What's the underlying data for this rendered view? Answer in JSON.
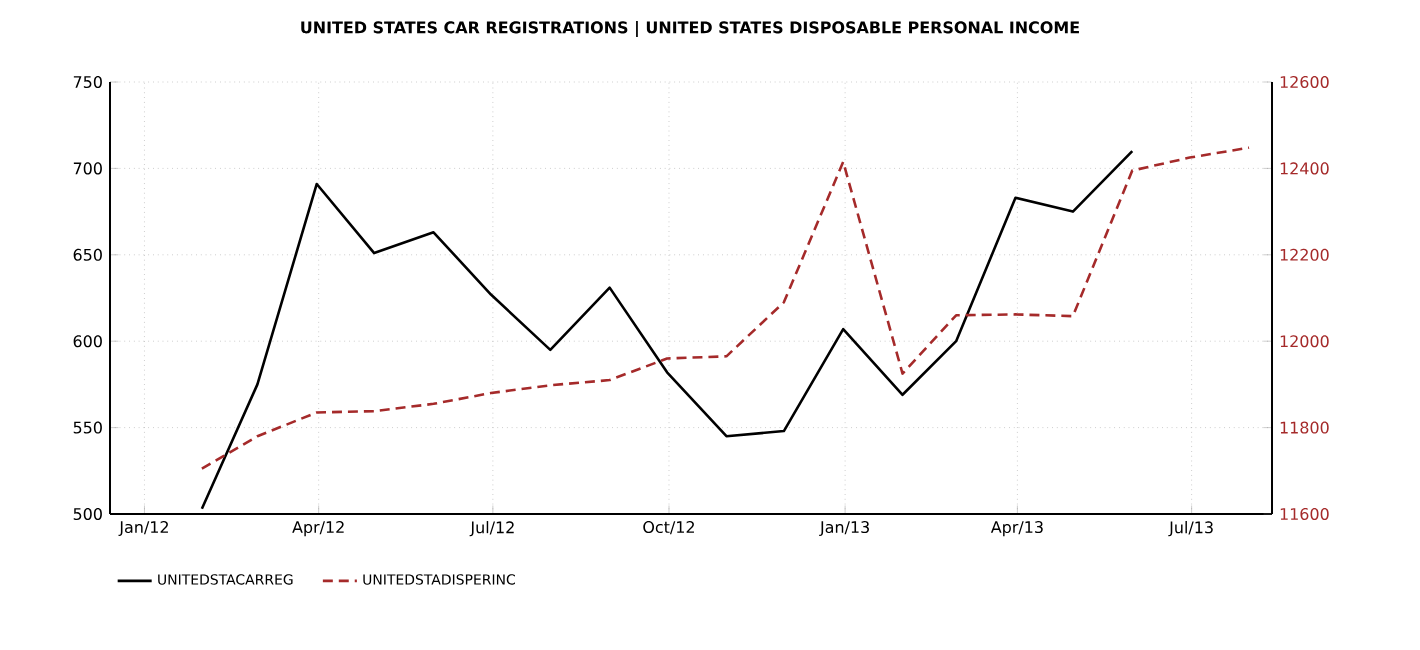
{
  "chart_data": {
    "type": "line",
    "title": "UNITED STATES CAR REGISTRATIONS |  UNITED STATES DISPOSABLE PERSONAL INCOME",
    "x": [
      "2012-01-31",
      "2012-02-29",
      "2012-03-31",
      "2012-04-30",
      "2012-05-31",
      "2012-06-30",
      "2012-07-31",
      "2012-08-31",
      "2012-09-30",
      "2012-10-31",
      "2012-11-30",
      "2012-12-31",
      "2013-01-31",
      "2013-02-28",
      "2013-03-31",
      "2013-04-30",
      "2013-05-31",
      "2013-06-30",
      "2013-07-31"
    ],
    "series": [
      {
        "name": "UNITEDSTACARREG",
        "color": "#000000",
        "line_style": "solid",
        "values": [
          503,
          575,
          691,
          651,
          663,
          627,
          595,
          631,
          582,
          545,
          548,
          607,
          569,
          600,
          683,
          675,
          710,
          null,
          null
        ]
      },
      {
        "name": "UNITEDSTADISPERINC",
        "color": "#a52a2a",
        "line_style": "dashed",
        "axis": "y2",
        "values": [
          11705,
          11780,
          11835,
          11838,
          11855,
          11880,
          11898,
          11910,
          11960,
          11965,
          12090,
          12415,
          11925,
          12060,
          12062,
          12058,
          12395,
          12425,
          12448
        ]
      }
    ],
    "xlim": [
      "2011-12-14",
      "2013-08-12"
    ],
    "xticks": [
      {
        "value": "2012-01-01",
        "label": "Jan/12"
      },
      {
        "value": "2012-04-01",
        "label": "Apr/12"
      },
      {
        "value": "2012-07-01",
        "label": "Jul/12"
      },
      {
        "value": "2012-10-01",
        "label": "Oct/12"
      },
      {
        "value": "2013-01-01",
        "label": "Jan/13"
      },
      {
        "value": "2013-04-01",
        "label": "Apr/13"
      },
      {
        "value": "2013-07-01",
        "label": "Jul/13"
      }
    ],
    "ylim": [
      500,
      750
    ],
    "yticks": [
      500,
      550,
      600,
      650,
      700,
      750
    ],
    "y2lim": [
      11600,
      12600
    ],
    "y2ticks": [
      11600,
      11800,
      12000,
      12200,
      12400,
      12600
    ],
    "grid": true,
    "legend": "bottom left",
    "marker": "none"
  }
}
